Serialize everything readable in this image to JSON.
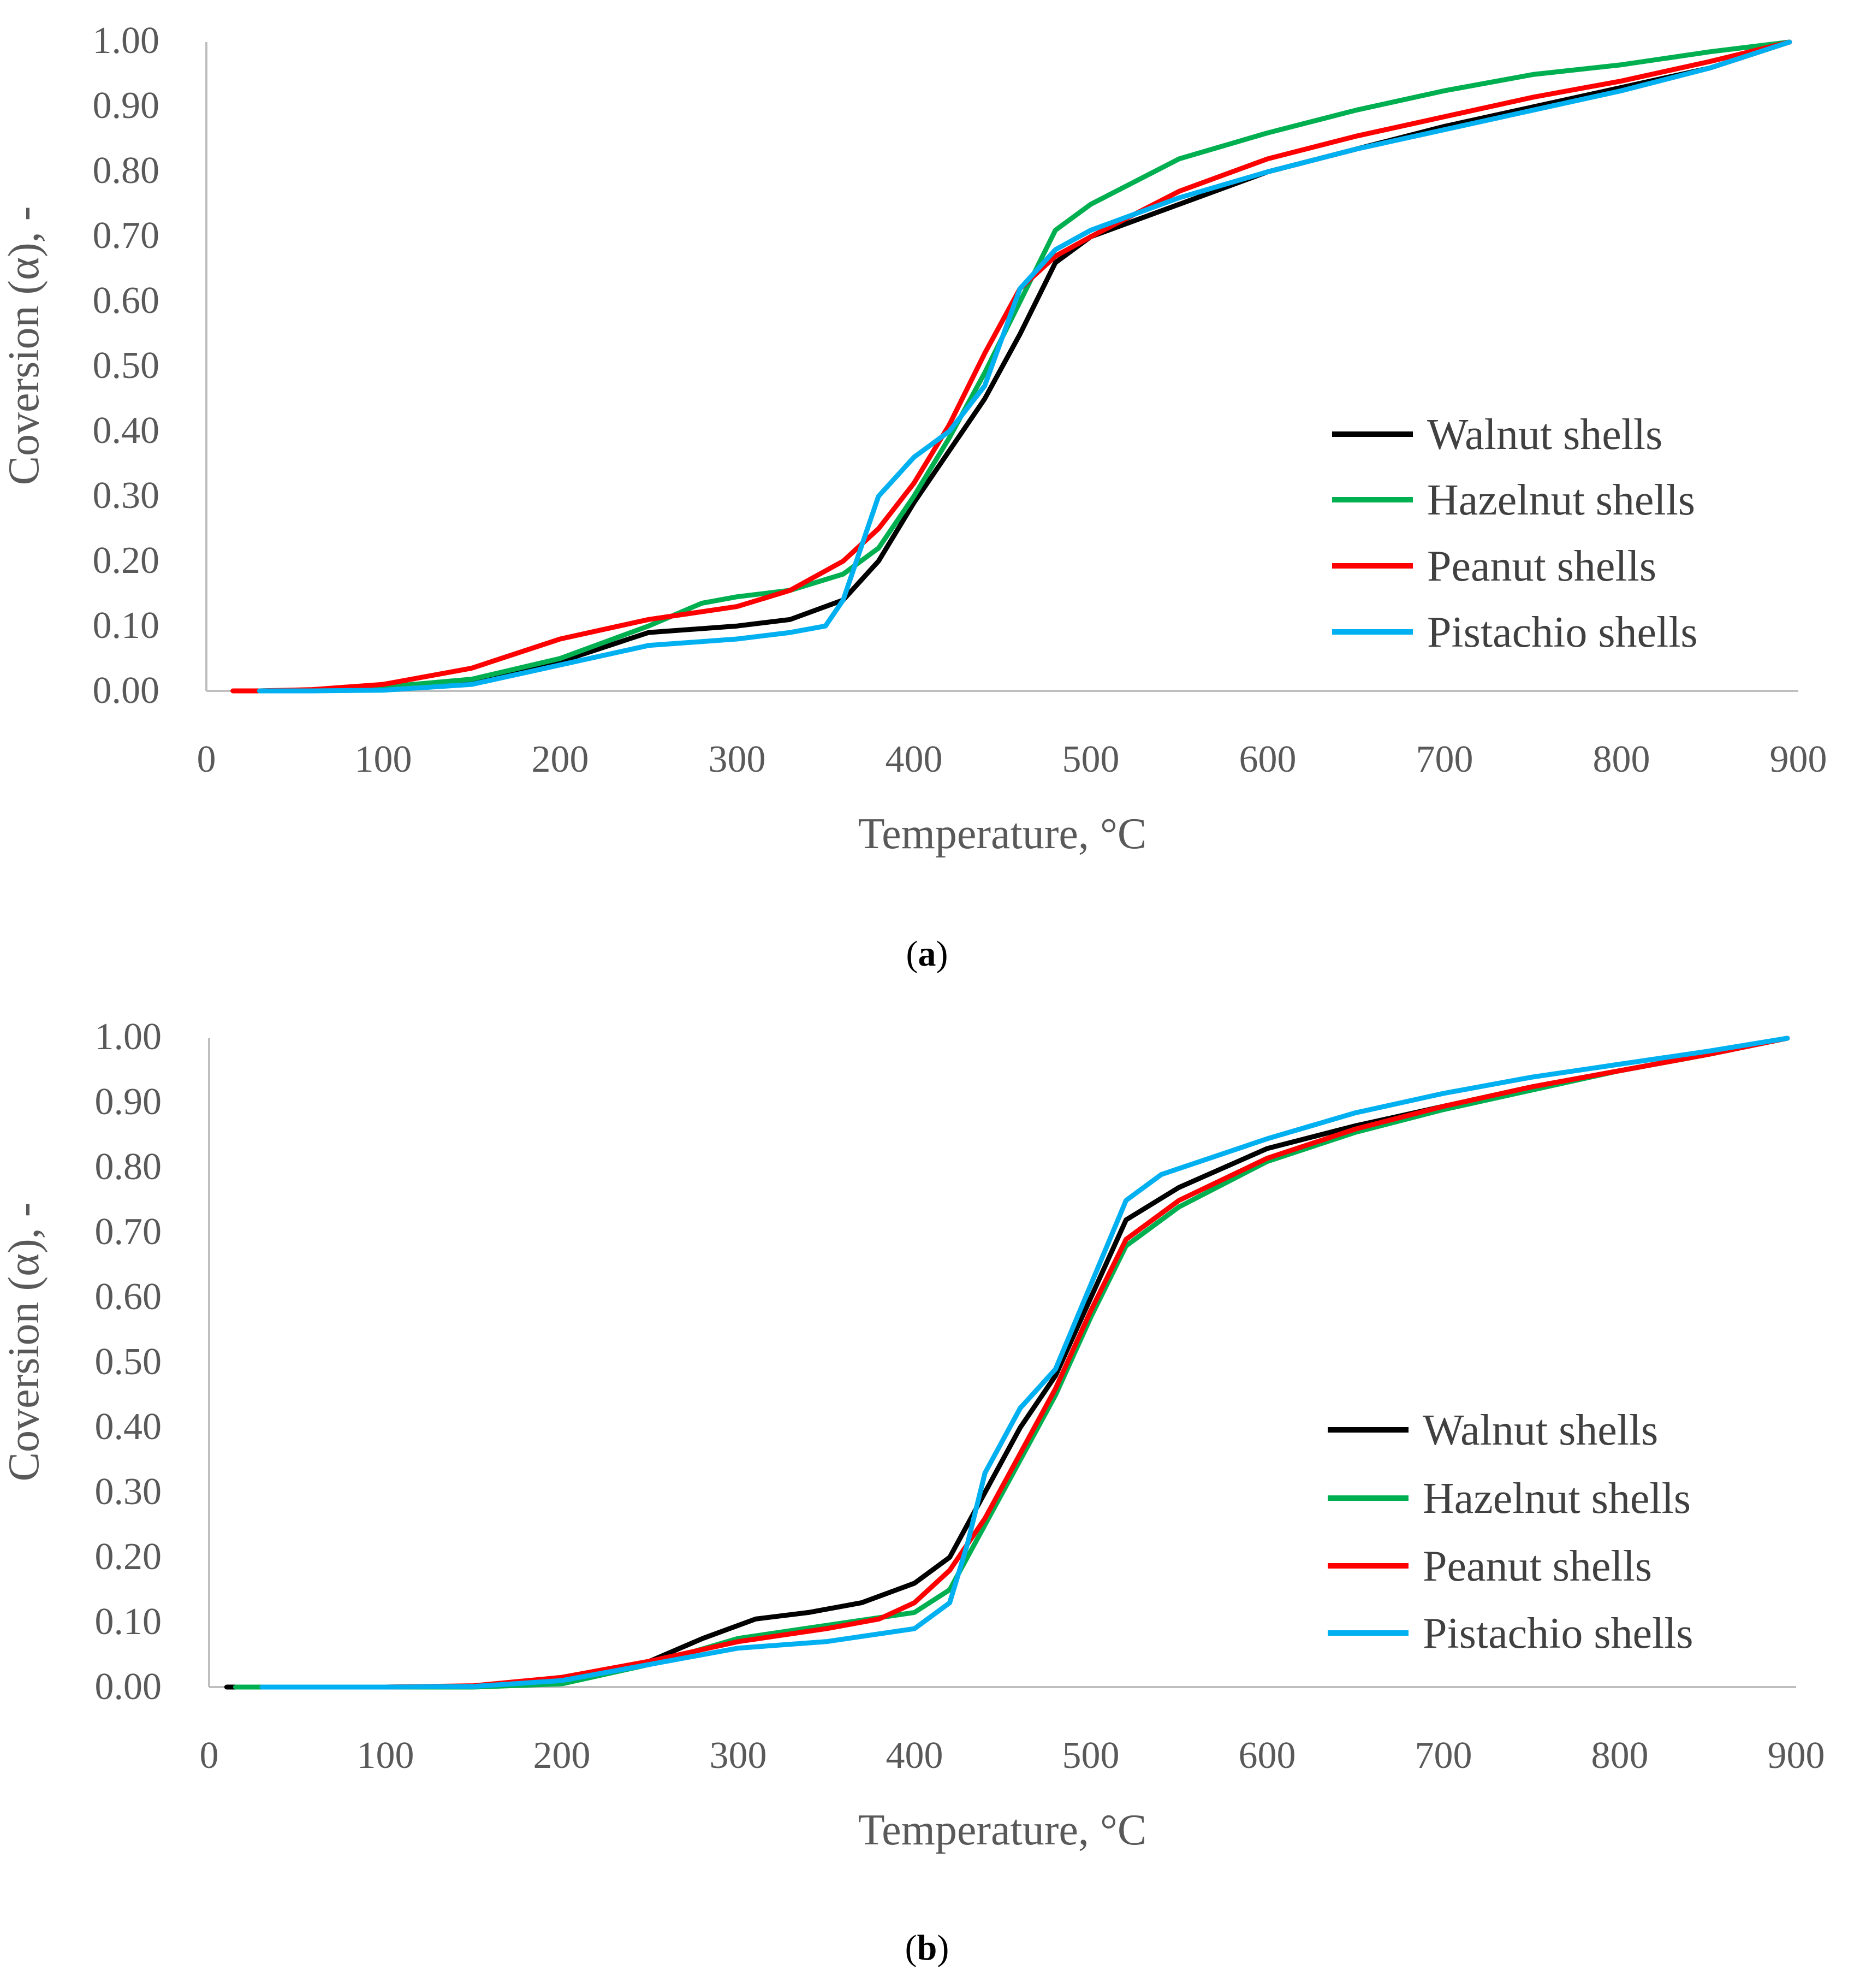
{
  "figure": {
    "panels": [
      {
        "label_open": "(",
        "label_letter": "a",
        "label_close": ")"
      },
      {
        "label_open": "(",
        "label_letter": "b",
        "label_close": ")"
      }
    ]
  },
  "chart_data": [
    {
      "type": "line",
      "panel": "a",
      "title": "",
      "xlabel": "Temperature, °C",
      "ylabel": "Coversion (α), -",
      "xlim": [
        0,
        900
      ],
      "ylim": [
        0,
        1
      ],
      "xticks": [
        "0",
        "100",
        "200",
        "300",
        "400",
        "500",
        "600",
        "700",
        "800",
        "900"
      ],
      "yticks": [
        "0.00",
        "0.10",
        "0.20",
        "0.30",
        "0.40",
        "0.50",
        "0.60",
        "0.70",
        "0.80",
        "0.90",
        "1.00"
      ],
      "grid": false,
      "legend_position": "right",
      "series": [
        {
          "name": "Walnut shells",
          "color": "#000000",
          "x": [
            30,
            60,
            100,
            150,
            200,
            250,
            300,
            330,
            360,
            380,
            400,
            420,
            440,
            460,
            480,
            500,
            550,
            600,
            650,
            700,
            750,
            800,
            850,
            895
          ],
          "y": [
            0.0,
            0.001,
            0.005,
            0.015,
            0.045,
            0.09,
            0.1,
            0.11,
            0.14,
            0.2,
            0.29,
            0.37,
            0.45,
            0.55,
            0.66,
            0.7,
            0.75,
            0.8,
            0.835,
            0.87,
            0.9,
            0.93,
            0.96,
            1.0
          ]
        },
        {
          "name": "Hazelnut shells",
          "color": "#00b050",
          "x": [
            30,
            60,
            100,
            150,
            200,
            250,
            280,
            300,
            330,
            360,
            380,
            400,
            420,
            440,
            460,
            480,
            500,
            550,
            600,
            650,
            700,
            750,
            800,
            850,
            895
          ],
          "y": [
            0.0,
            0.001,
            0.006,
            0.018,
            0.05,
            0.1,
            0.135,
            0.145,
            0.155,
            0.18,
            0.22,
            0.3,
            0.39,
            0.49,
            0.6,
            0.71,
            0.75,
            0.82,
            0.86,
            0.895,
            0.925,
            0.95,
            0.965,
            0.985,
            1.0
          ]
        },
        {
          "name": "Peanut shells",
          "color": "#ff0000",
          "x": [
            15,
            30,
            60,
            100,
            150,
            200,
            250,
            300,
            330,
            360,
            380,
            400,
            420,
            440,
            460,
            480,
            500,
            550,
            600,
            650,
            700,
            750,
            800,
            850,
            895
          ],
          "y": [
            0.0,
            0.0,
            0.002,
            0.01,
            0.035,
            0.08,
            0.11,
            0.13,
            0.155,
            0.2,
            0.25,
            0.32,
            0.41,
            0.52,
            0.62,
            0.67,
            0.7,
            0.77,
            0.82,
            0.855,
            0.885,
            0.915,
            0.94,
            0.97,
            1.0
          ]
        },
        {
          "name": "Pistachio shells",
          "color": "#00b0f0",
          "x": [
            30,
            60,
            100,
            150,
            200,
            250,
            300,
            330,
            350,
            360,
            370,
            380,
            400,
            420,
            440,
            460,
            480,
            500,
            550,
            600,
            650,
            700,
            750,
            800,
            850,
            895
          ],
          "y": [
            0.0,
            0.0,
            0.001,
            0.01,
            0.04,
            0.07,
            0.08,
            0.09,
            0.1,
            0.14,
            0.22,
            0.3,
            0.36,
            0.4,
            0.47,
            0.62,
            0.68,
            0.71,
            0.76,
            0.8,
            0.835,
            0.865,
            0.895,
            0.925,
            0.96,
            1.0
          ]
        }
      ]
    },
    {
      "type": "line",
      "panel": "b",
      "title": "",
      "xlabel": "Temperature, °C",
      "ylabel": "Coversion (α), -",
      "xlim": [
        0,
        900
      ],
      "ylim": [
        0,
        1
      ],
      "xticks": [
        "0",
        "100",
        "200",
        "300",
        "400",
        "500",
        "600",
        "700",
        "800",
        "900"
      ],
      "yticks": [
        "0.00",
        "0.10",
        "0.20",
        "0.30",
        "0.40",
        "0.50",
        "0.60",
        "0.70",
        "0.80",
        "0.90",
        "1.00"
      ],
      "grid": false,
      "legend_position": "right",
      "series": [
        {
          "name": "Walnut shells",
          "color": "#000000",
          "x": [
            10,
            30,
            100,
            150,
            200,
            250,
            280,
            310,
            340,
            370,
            400,
            420,
            440,
            460,
            480,
            500,
            520,
            550,
            600,
            650,
            700,
            750,
            800,
            850,
            895
          ],
          "y": [
            0.0,
            0.0,
            0.0,
            0.001,
            0.01,
            0.04,
            0.075,
            0.105,
            0.115,
            0.13,
            0.16,
            0.2,
            0.3,
            0.4,
            0.48,
            0.6,
            0.72,
            0.77,
            0.83,
            0.865,
            0.895,
            0.925,
            0.95,
            0.975,
            1.0
          ]
        },
        {
          "name": "Hazelnut shells",
          "color": "#00b050",
          "x": [
            15,
            30,
            100,
            150,
            200,
            250,
            300,
            350,
            400,
            420,
            440,
            460,
            480,
            500,
            520,
            550,
            600,
            650,
            700,
            750,
            800,
            850,
            895
          ],
          "y": [
            0.0,
            0.0,
            0.0,
            0.0,
            0.005,
            0.035,
            0.075,
            0.095,
            0.115,
            0.15,
            0.25,
            0.35,
            0.45,
            0.57,
            0.68,
            0.74,
            0.81,
            0.855,
            0.89,
            0.92,
            0.95,
            0.975,
            1.0
          ]
        },
        {
          "name": "Peanut shells",
          "color": "#ff0000",
          "x": [
            30,
            100,
            150,
            200,
            250,
            300,
            350,
            380,
            400,
            420,
            440,
            460,
            480,
            500,
            520,
            550,
            600,
            650,
            700,
            750,
            800,
            850,
            895
          ],
          "y": [
            0.0,
            0.0,
            0.002,
            0.015,
            0.04,
            0.07,
            0.09,
            0.105,
            0.13,
            0.18,
            0.26,
            0.36,
            0.46,
            0.58,
            0.69,
            0.75,
            0.815,
            0.86,
            0.895,
            0.925,
            0.95,
            0.975,
            1.0
          ]
        },
        {
          "name": "Pistachio shells",
          "color": "#00b0f0",
          "x": [
            30,
            100,
            150,
            200,
            250,
            300,
            350,
            400,
            420,
            430,
            440,
            460,
            480,
            500,
            520,
            540,
            600,
            650,
            700,
            750,
            800,
            850,
            895
          ],
          "y": [
            0.0,
            0.0,
            0.001,
            0.01,
            0.035,
            0.06,
            0.07,
            0.09,
            0.13,
            0.22,
            0.33,
            0.43,
            0.49,
            0.62,
            0.75,
            0.79,
            0.845,
            0.885,
            0.915,
            0.94,
            0.96,
            0.98,
            1.0
          ]
        }
      ]
    }
  ]
}
